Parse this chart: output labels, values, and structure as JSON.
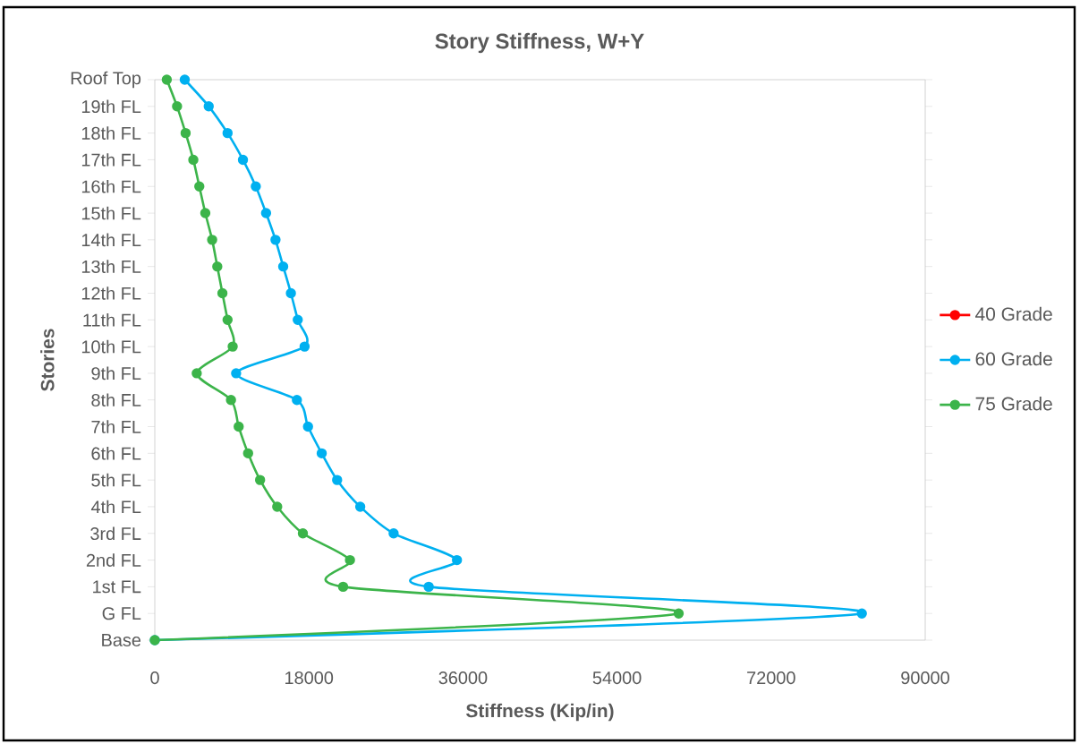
{
  "chart_data": {
    "type": "line",
    "title": "Story Stiffness, W+Y",
    "xlabel": "Stiffness (Kip/in)",
    "ylabel": "Stories",
    "orientation": "horizontal",
    "categories": [
      "Roof Top",
      "19th FL",
      "18th FL",
      "17th FL",
      "16th FL",
      "15th FL",
      "14th FL",
      "13th FL",
      "12th FL",
      "11th FL",
      "10th FL",
      "9th FL",
      "8th FL",
      "7th FL",
      "6th FL",
      "5th FL",
      "4th FL",
      "3rd FL",
      "2nd FL",
      "1st FL",
      "G FL",
      "Base"
    ],
    "series": [
      {
        "name": "40 Grade",
        "color": "#ff0000",
        "values": [
          null,
          null,
          null,
          null,
          null,
          null,
          null,
          null,
          null,
          null,
          null,
          null,
          null,
          null,
          null,
          null,
          null,
          null,
          null,
          null,
          null,
          null
        ]
      },
      {
        "name": "60 Grade",
        "color": "#00b0f0",
        "values": [
          3500,
          6300,
          8500,
          10300,
          11800,
          13000,
          14100,
          15000,
          15900,
          16700,
          17500,
          9500,
          16600,
          17900,
          19500,
          21300,
          24000,
          27900,
          35300,
          32000,
          82600,
          0
        ]
      },
      {
        "name": "75 Grade",
        "color": "#3cb44a",
        "values": [
          1400,
          2600,
          3600,
          4500,
          5200,
          5900,
          6700,
          7300,
          7900,
          8500,
          9100,
          4900,
          8900,
          9800,
          10900,
          12300,
          14300,
          17300,
          22800,
          22000,
          61200,
          0
        ]
      }
    ],
    "xlim": [
      0,
      90000
    ],
    "xticks": [
      0,
      18000,
      36000,
      54000,
      72000,
      90000
    ],
    "marker": "circle",
    "legend": "right",
    "grid": false
  }
}
